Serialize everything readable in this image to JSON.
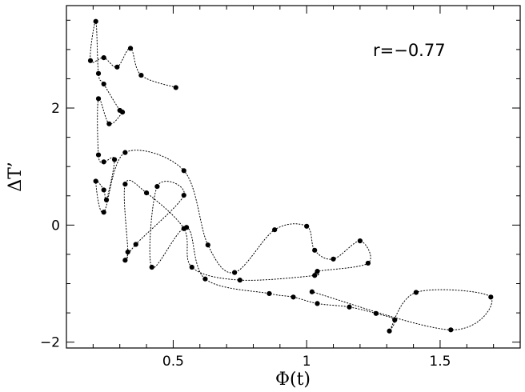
{
  "chart_data": {
    "type": "scatter",
    "title": "",
    "xlabel": "Φ(t)",
    "ylabel": "ΔT’",
    "annotation": "r=−0.77",
    "xlim": [
      0.1,
      1.8
    ],
    "ylim": [
      -2.1,
      3.75
    ],
    "xticks": [
      {
        "value": 0.5,
        "label": "0.5"
      },
      {
        "value": 1.0,
        "label": "1"
      },
      {
        "value": 1.5,
        "label": "1.5"
      }
    ],
    "yticks": [
      {
        "value": -2,
        "label": "−2"
      },
      {
        "value": 0,
        "label": "0"
      },
      {
        "value": 2,
        "label": "2"
      }
    ],
    "connected": true,
    "line_style": "dotted",
    "marker_color": "#000000",
    "points": [
      {
        "x": 0.51,
        "y": 2.35
      },
      {
        "x": 0.38,
        "y": 2.56
      },
      {
        "x": 0.34,
        "y": 3.02
      },
      {
        "x": 0.29,
        "y": 2.7
      },
      {
        "x": 0.24,
        "y": 2.86
      },
      {
        "x": 0.19,
        "y": 2.81
      },
      {
        "x": 0.21,
        "y": 3.48
      },
      {
        "x": 0.22,
        "y": 2.59
      },
      {
        "x": 0.24,
        "y": 2.41
      },
      {
        "x": 0.3,
        "y": 1.96
      },
      {
        "x": 0.31,
        "y": 1.93
      },
      {
        "x": 0.26,
        "y": 1.73
      },
      {
        "x": 0.22,
        "y": 2.16
      },
      {
        "x": 0.22,
        "y": 1.2
      },
      {
        "x": 0.24,
        "y": 1.08
      },
      {
        "x": 0.28,
        "y": 1.12
      },
      {
        "x": 0.25,
        "y": 0.43
      },
      {
        "x": 0.24,
        "y": 0.6
      },
      {
        "x": 0.21,
        "y": 0.75
      },
      {
        "x": 0.24,
        "y": 0.22
      },
      {
        "x": 0.32,
        "y": 1.24
      },
      {
        "x": 0.54,
        "y": 0.93
      },
      {
        "x": 0.63,
        "y": -0.34
      },
      {
        "x": 0.73,
        "y": -0.81
      },
      {
        "x": 0.88,
        "y": -0.08
      },
      {
        "x": 1.0,
        "y": -0.02
      },
      {
        "x": 1.03,
        "y": -0.43
      },
      {
        "x": 1.1,
        "y": -0.58
      },
      {
        "x": 1.2,
        "y": -0.27
      },
      {
        "x": 1.23,
        "y": -0.65
      },
      {
        "x": 1.04,
        "y": -0.79
      },
      {
        "x": 1.03,
        "y": -0.86
      },
      {
        "x": 0.75,
        "y": -0.94
      },
      {
        "x": 0.57,
        "y": -0.72
      },
      {
        "x": 0.54,
        "y": -0.06
      },
      {
        "x": 0.4,
        "y": 0.55
      },
      {
        "x": 0.32,
        "y": 0.7
      },
      {
        "x": 0.33,
        "y": -0.46
      },
      {
        "x": 0.32,
        "y": -0.6
      },
      {
        "x": 0.36,
        "y": -0.33
      },
      {
        "x": 0.54,
        "y": 0.51
      },
      {
        "x": 0.44,
        "y": 0.66
      },
      {
        "x": 0.42,
        "y": -0.72
      },
      {
        "x": 0.55,
        "y": -0.04
      },
      {
        "x": 0.62,
        "y": -0.92
      },
      {
        "x": 0.86,
        "y": -1.17
      },
      {
        "x": 0.95,
        "y": -1.23
      },
      {
        "x": 1.04,
        "y": -1.34
      },
      {
        "x": 1.16,
        "y": -1.4
      },
      {
        "x": 1.26,
        "y": -1.51
      },
      {
        "x": 1.33,
        "y": -1.62
      },
      {
        "x": 1.31,
        "y": -1.81
      },
      {
        "x": 1.41,
        "y": -1.15
      },
      {
        "x": 1.69,
        "y": -1.23
      },
      {
        "x": 1.54,
        "y": -1.79
      },
      {
        "x": 1.02,
        "y": -1.14
      }
    ]
  }
}
